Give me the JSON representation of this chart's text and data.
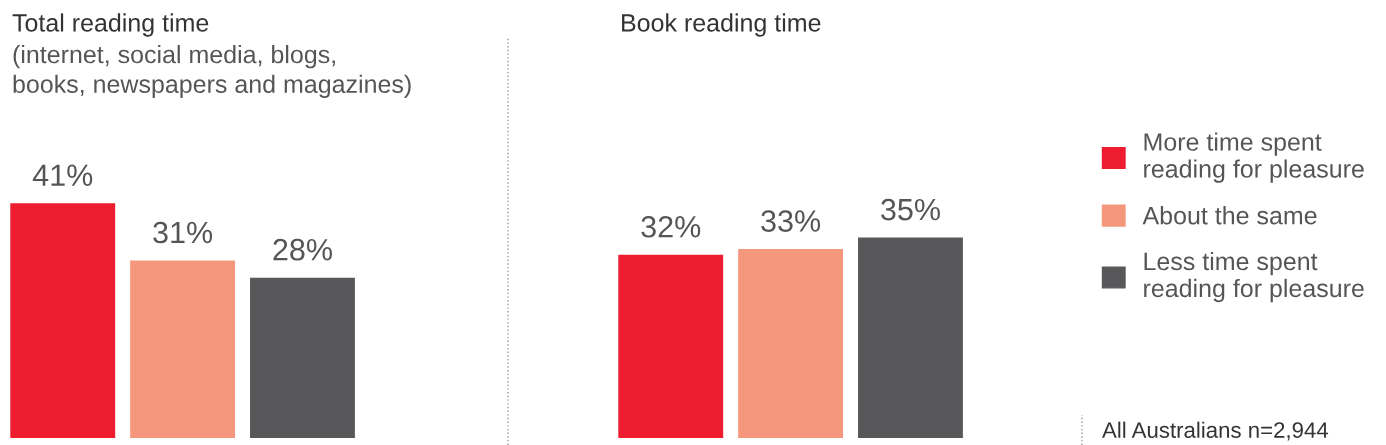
{
  "chart_data": [
    {
      "type": "bar",
      "title": "Total reading time",
      "subtitle": "(internet, social media, blogs,\nbooks, newspapers and magazines)",
      "categories": [
        null
      ],
      "legend": false,
      "series": [
        {
          "color": "#ed1c2e",
          "values": [
            41
          ],
          "value_labels": [
            "41%"
          ]
        },
        {
          "color": "#f4977c",
          "values": [
            31
          ],
          "value_labels": [
            "31%"
          ]
        },
        {
          "color": "#58585a",
          "values": [
            28
          ],
          "value_labels": [
            "28%"
          ]
        }
      ]
    },
    {
      "type": "bar",
      "title": "Book reading time",
      "categories": [
        null
      ],
      "legend": "right",
      "annotations": [
        "All Australians n=2,944"
      ],
      "series": [
        {
          "name": "More time spent\nreading for pleasure",
          "color": "#ed1c2e",
          "values": [
            32
          ],
          "value_labels": [
            "32%"
          ]
        },
        {
          "name": "About the same",
          "color": "#f4977c",
          "values": [
            33
          ],
          "value_labels": [
            "33%"
          ]
        },
        {
          "name": "Less time spent\nreading for pleasure",
          "color": "#58585a",
          "values": [
            35
          ],
          "value_labels": [
            "35%"
          ]
        }
      ]
    }
  ]
}
